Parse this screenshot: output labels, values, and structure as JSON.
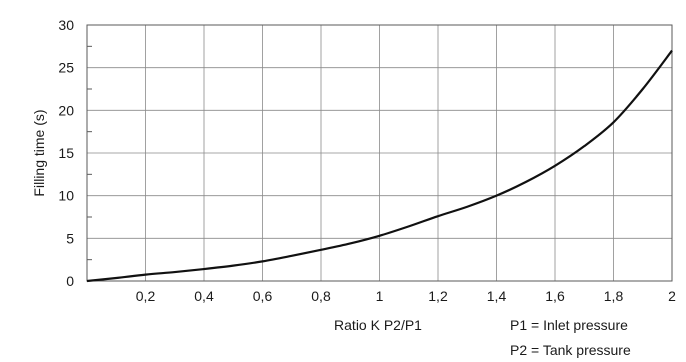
{
  "chart_data": {
    "type": "line",
    "ylabel": "Filling time  (s)",
    "xlabel": "Ratio K P2/P1",
    "xlim": [
      0,
      2
    ],
    "ylim": [
      0,
      30
    ],
    "x_ticks": [
      "0,2",
      "0,4",
      "0,6",
      "0,8",
      "1",
      "1,2",
      "1,4",
      "1,6",
      "1,8",
      "2"
    ],
    "x_tick_values": [
      0.2,
      0.4,
      0.6,
      0.8,
      1.0,
      1.2,
      1.4,
      1.6,
      1.8,
      2.0
    ],
    "y_ticks": [
      "0",
      "5",
      "10",
      "15",
      "20",
      "25",
      "30"
    ],
    "y_tick_values": [
      0,
      5,
      10,
      15,
      20,
      25,
      30
    ],
    "grid": true,
    "notes": [
      "P1 = Inlet pressure",
      "P2 = Tank pressure"
    ],
    "series": [
      {
        "x": [
          0,
          0.1,
          0.2,
          0.3,
          0.4,
          0.5,
          0.6,
          0.7,
          0.8,
          0.9,
          1.0,
          1.1,
          1.2,
          1.3,
          1.4,
          1.5,
          1.6,
          1.7,
          1.8,
          1.9,
          2.0
        ],
        "values": [
          0,
          0.35,
          0.75,
          1.05,
          1.4,
          1.8,
          2.3,
          2.95,
          3.65,
          4.4,
          5.3,
          6.4,
          7.6,
          8.7,
          10.0,
          11.6,
          13.5,
          15.8,
          18.6,
          22.5,
          27.0
        ]
      }
    ]
  }
}
